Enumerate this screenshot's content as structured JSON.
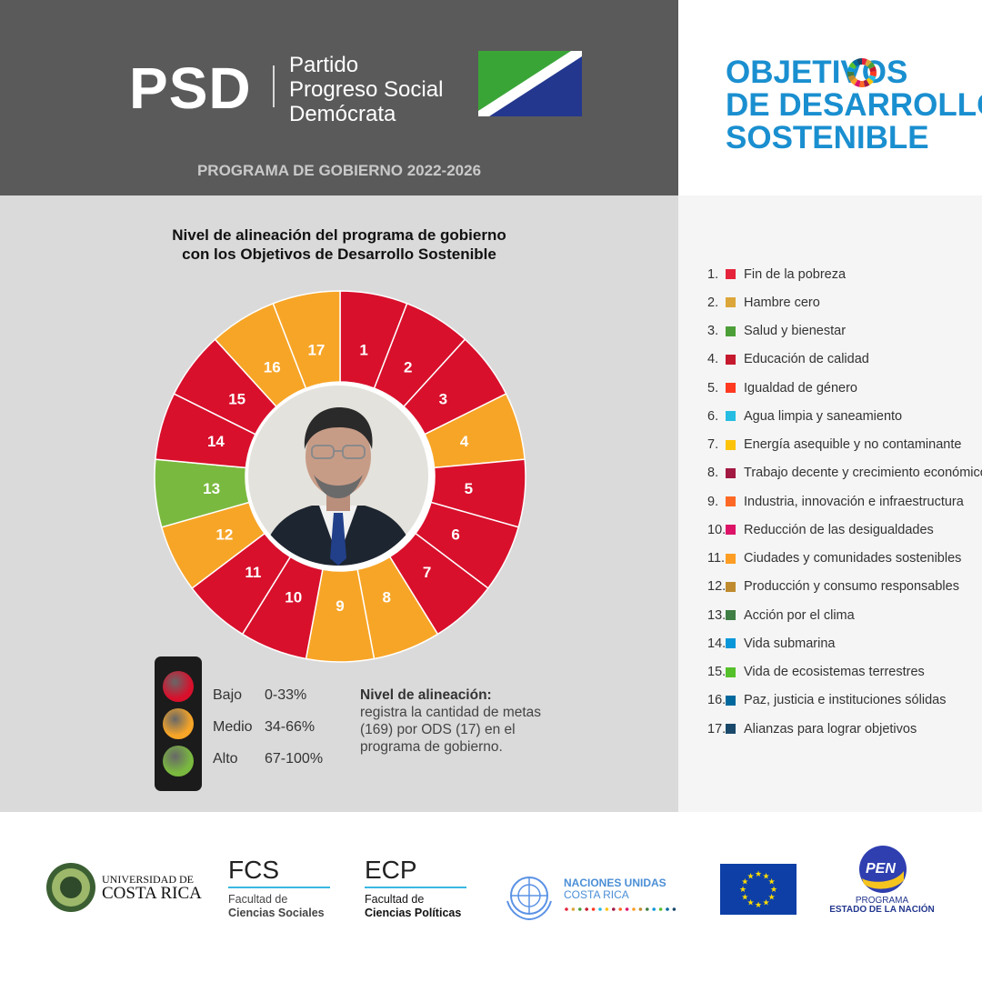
{
  "header": {
    "abbr": "PSD",
    "party_name_lines": [
      "Partido",
      "Progreso Social",
      "Demócrata"
    ],
    "program": "PROGRAMA DE GOBIERNO 2022-2026"
  },
  "ods_title_lines": [
    "OBJETIVOS",
    "DE DESARROLLO",
    "SOSTENIBLE"
  ],
  "chart": {
    "title_lines": [
      "Nivel de alineación del programa de gobierno",
      "con los Objetivos de Desarrollo Sostenible"
    ],
    "segments": [
      {
        "n": "1",
        "level": "Bajo"
      },
      {
        "n": "2",
        "level": "Bajo"
      },
      {
        "n": "3",
        "level": "Bajo"
      },
      {
        "n": "4",
        "level": "Medio"
      },
      {
        "n": "5",
        "level": "Bajo"
      },
      {
        "n": "6",
        "level": "Bajo"
      },
      {
        "n": "7",
        "level": "Bajo"
      },
      {
        "n": "8",
        "level": "Medio"
      },
      {
        "n": "9",
        "level": "Medio"
      },
      {
        "n": "10",
        "level": "Bajo"
      },
      {
        "n": "11",
        "level": "Bajo"
      },
      {
        "n": "12",
        "level": "Medio"
      },
      {
        "n": "13",
        "level": "Alto"
      },
      {
        "n": "14",
        "level": "Bajo"
      },
      {
        "n": "15",
        "level": "Bajo"
      },
      {
        "n": "16",
        "level": "Medio"
      },
      {
        "n": "17",
        "level": "Medio"
      }
    ]
  },
  "levels": [
    {
      "name": "Bajo",
      "range": "0-33%",
      "color": "#d8102c"
    },
    {
      "name": "Medio",
      "range": "34-66%",
      "color": "#f7a527"
    },
    {
      "name": "Alto",
      "range": "67-100%",
      "color": "#7ab93f"
    }
  ],
  "note": {
    "bold": "Nivel de alineación:",
    "text": "registra la cantidad de metas (169) por ODS (17) en el programa de gobierno."
  },
  "legend": [
    {
      "num": "1.",
      "label": "Fin de la pobreza",
      "color": "#e5243b"
    },
    {
      "num": "2.",
      "label": "Hambre cero",
      "color": "#dda63a"
    },
    {
      "num": "3.",
      "label": "Salud y bienestar",
      "color": "#4c9f38"
    },
    {
      "num": "4.",
      "label": "Educación de calidad",
      "color": "#c5192d"
    },
    {
      "num": "5.",
      "label": "Igualdad de género",
      "color": "#ff3a21"
    },
    {
      "num": "6.",
      "label": "Agua limpia y saneamiento",
      "color": "#26bde2"
    },
    {
      "num": "7.",
      "label": "Energía asequible y no contaminante",
      "color": "#fcc30b"
    },
    {
      "num": "8.",
      "label": "Trabajo decente y crecimiento económico",
      "color": "#a21942"
    },
    {
      "num": "9.",
      "label": "Industria, innovación e infraestructura",
      "color": "#fd6925"
    },
    {
      "num": "10.",
      "label": "Reducción de las desigualdades",
      "color": "#dd1367"
    },
    {
      "num": "11.",
      "label": "Ciudades y comunidades sostenibles",
      "color": "#fd9d24"
    },
    {
      "num": "12.",
      "label": "Producción y consumo responsables",
      "color": "#bf8b2e"
    },
    {
      "num": "13.",
      "label": "Acción por el clima",
      "color": "#3f7e44"
    },
    {
      "num": "14.",
      "label": "Vida submarina",
      "color": "#0a97d9"
    },
    {
      "num": "15.",
      "label": "Vida de ecosistemas terrestres",
      "color": "#56c02b"
    },
    {
      "num": "16.",
      "label": "Paz, justicia e instituciones sólidas",
      "color": "#00689d"
    },
    {
      "num": "17.",
      "label": "Alianzas para lograr objetivos",
      "color": "#19486a"
    }
  ],
  "footer": {
    "ucr_lines": [
      "UNIVERSIDAD DE",
      "COSTA RICA"
    ],
    "fcs_abbr": "FCS",
    "fcs_lines": [
      "Facultad de",
      "Ciencias Sociales"
    ],
    "ecp_abbr": "ECP",
    "ecp_lines": [
      "Facultad de",
      "Ciencias Políticas"
    ],
    "un_lines": [
      "NACIONES UNIDAS",
      "COSTA RICA"
    ],
    "pen_badge": "PEN",
    "pen_lines": [
      "PROGRAMA",
      "ESTADO DE LA NACIÓN"
    ]
  }
}
